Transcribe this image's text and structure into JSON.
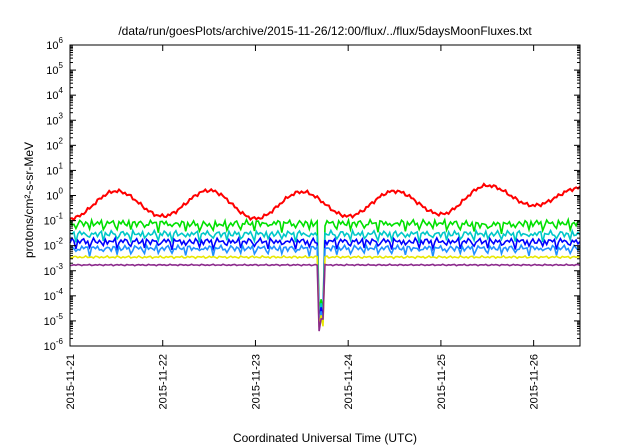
{
  "chart_data": {
    "type": "line",
    "title": "/data/run/goesPlots/archive/2015-11-26/12:00/flux/../flux/5daysMoonFluxes.txt",
    "xlabel": "Coordinated Universal Time (UTC)",
    "ylabel": "protons/cm²-s-sr-MeV",
    "yscale": "log",
    "ylim": [
      1e-06,
      1000000.0
    ],
    "yticks": [
      {
        "base": "10",
        "exp": "-6"
      },
      {
        "base": "10",
        "exp": "-5"
      },
      {
        "base": "10",
        "exp": "-4"
      },
      {
        "base": "10",
        "exp": "-3"
      },
      {
        "base": "10",
        "exp": "-2"
      },
      {
        "base": "10",
        "exp": "-1"
      },
      {
        "base": "10",
        "exp": "0"
      },
      {
        "base": "10",
        "exp": "1"
      },
      {
        "base": "10",
        "exp": "2"
      },
      {
        "base": "10",
        "exp": "3"
      },
      {
        "base": "10",
        "exp": "4"
      },
      {
        "base": "10",
        "exp": "5"
      },
      {
        "base": "10",
        "exp": "6"
      }
    ],
    "xlim": [
      "2015-11-21 00:00",
      "2015-11-26 12:00"
    ],
    "xticks": [
      "2015-11-21",
      "2015-11-22",
      "2015-11-23",
      "2015-11-24",
      "2015-11-25",
      "2015-11-26"
    ],
    "grid": false,
    "legend": "none",
    "x": [
      "2015-11-21 00:00",
      "2015-11-21 12:00",
      "2015-11-22 00:00",
      "2015-11-22 12:00",
      "2015-11-23 00:00",
      "2015-11-23 12:00",
      "2015-11-24 00:00",
      "2015-11-24 12:00",
      "2015-11-25 00:00",
      "2015-11-25 12:00",
      "2015-11-26 00:00",
      "2015-11-26 12:00"
    ],
    "series": [
      {
        "color": "#ff0000",
        "values": [
          0.12,
          1.5,
          0.15,
          1.6,
          0.12,
          1.4,
          0.15,
          1.5,
          0.18,
          2.5,
          0.4,
          2.0
        ]
      },
      {
        "color": "#00e000",
        "values": [
          0.08,
          0.08,
          0.08,
          0.07,
          0.08,
          0.08,
          0.08,
          0.08,
          0.08,
          0.07,
          0.08,
          0.08
        ]
      },
      {
        "color": "#00c8c8",
        "values": [
          0.03,
          0.03,
          0.03,
          0.03,
          0.03,
          0.03,
          0.03,
          0.03,
          0.03,
          0.03,
          0.03,
          0.03
        ]
      },
      {
        "color": "#0000ff",
        "values": [
          0.015,
          0.015,
          0.015,
          0.015,
          0.015,
          0.015,
          0.015,
          0.015,
          0.015,
          0.015,
          0.015,
          0.015
        ]
      },
      {
        "color": "#2090ff",
        "values": [
          0.008,
          0.008,
          0.008,
          0.008,
          0.008,
          0.008,
          0.008,
          0.008,
          0.008,
          0.008,
          0.008,
          0.008
        ]
      },
      {
        "color": "#e8e800",
        "values": [
          0.0035,
          0.0035,
          0.0035,
          0.0035,
          0.0035,
          0.0035,
          0.0035,
          0.0035,
          0.0035,
          0.0035,
          0.0035,
          0.0035
        ]
      },
      {
        "color": "#8c2a8c",
        "values": [
          0.0017,
          0.0017,
          0.0017,
          0.0017,
          0.0017,
          0.0017,
          0.0017,
          0.0017,
          0.0017,
          0.0017,
          0.0017,
          0.0017
        ]
      }
    ],
    "annotations": [
      {
        "note": "sharp dip of all low-energy channels near 2015-11-23 17:00 down to about 1e-5"
      }
    ]
  }
}
